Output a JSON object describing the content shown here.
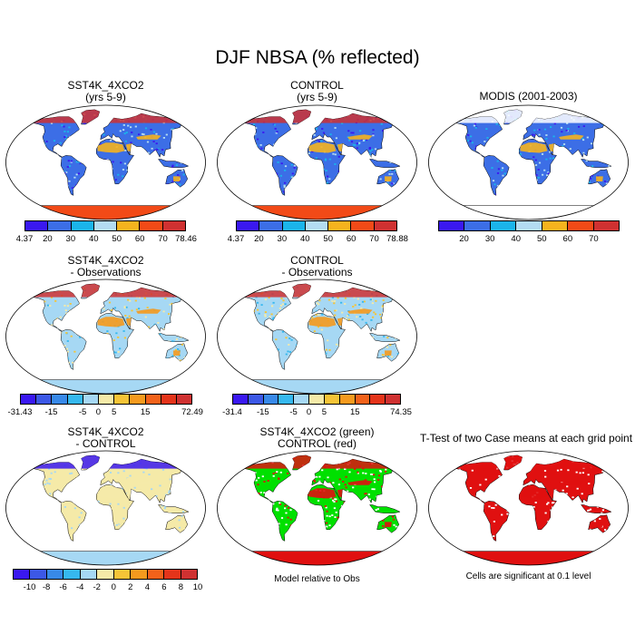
{
  "title": "DJF NBSA (% reflected)",
  "palettes": {
    "absolute": [
      "#3a18f0",
      "#3c6ee6",
      "#1bb4ea",
      "#b3dcf2",
      "#f5b31e",
      "#f24a17",
      "#cf3131"
    ],
    "difference": [
      "#3a18f0",
      "#3c58e6",
      "#3889e8",
      "#36b8ee",
      "#a6d8f4",
      "#f5eaa8",
      "#f5c437",
      "#f59a1e",
      "#f2621a",
      "#e4341a",
      "#cf3131"
    ]
  },
  "map_colors": {
    "ocean": "#ffffff",
    "outline": "#000000",
    "grid": "#e6e6e6"
  },
  "panels": [
    {
      "id": "p1",
      "title_lines": [
        "SST4K_4XCO2",
        "(yrs 5-9)"
      ],
      "scheme": "model_abs",
      "colorbar": {
        "palette": "absolute",
        "labels": [
          "4.37",
          "20",
          "30",
          "40",
          "50",
          "60",
          "70",
          "78.46"
        ]
      }
    },
    {
      "id": "p2",
      "title_lines": [
        "CONTROL",
        "(yrs 5-9)"
      ],
      "scheme": "model_abs",
      "colorbar": {
        "palette": "absolute",
        "labels": [
          "4.37",
          "20",
          "30",
          "40",
          "50",
          "60",
          "70",
          "78.88"
        ]
      }
    },
    {
      "id": "p3",
      "title_lines": [
        "MODIS (2001-2003)"
      ],
      "scheme": "obs_abs",
      "colorbar": {
        "palette": "absolute",
        "labels": [
          "20",
          "30",
          "40",
          "50",
          "60",
          "70"
        ]
      }
    },
    {
      "id": "p4",
      "title_lines": [
        "SST4K_4XCO2",
        "- Observations"
      ],
      "scheme": "model_minus_obs",
      "colorbar": {
        "palette": "difference",
        "labels": [
          "-31.43",
          "-15",
          "-5",
          "0",
          "5",
          "15",
          "72.49"
        ]
      }
    },
    {
      "id": "p5",
      "title_lines": [
        "CONTROL",
        "- Observations"
      ],
      "scheme": "model_minus_obs",
      "colorbar": {
        "palette": "difference",
        "labels": [
          "-31.4",
          "-15",
          "-5",
          "0",
          "5",
          "15",
          "74.35"
        ]
      }
    },
    {
      "id": "p6",
      "title_lines": [
        "SST4K_4XCO2",
        "- CONTROL"
      ],
      "scheme": "case_diff",
      "colorbar": {
        "palette": "difference",
        "labels": [
          "-10",
          "-8",
          "-6",
          "-4",
          "-2",
          "0",
          "2",
          "4",
          "6",
          "8",
          "10"
        ]
      }
    },
    {
      "id": "p7",
      "title_lines": [
        "SST4K_4XCO2 (green)",
        "CONTROL (red)"
      ],
      "scheme": "green_red",
      "note": "Model relative to Obs"
    },
    {
      "id": "p8",
      "title_lines": [
        "T-Test of two Case means at each grid point"
      ],
      "scheme": "ttest",
      "note": "Cells are significant at 0.1 level"
    }
  ],
  "scheme_colors": {
    "model_abs": {
      "land": "#3c6ee6",
      "spots": [
        "#1bb4ea",
        "#3a18f0",
        "#b3dcf2"
      ],
      "desert": "#f5b31e",
      "arctic": "#cf3131",
      "antarctic": "#f24a17"
    },
    "obs_abs": {
      "land": "#3c6ee6",
      "spots": [
        "#1bb4ea",
        "#b3dcf2",
        "#3a18f0"
      ],
      "desert": "#f5b31e",
      "arctic": "#ffffff",
      "antarctic": "#ffffff"
    },
    "model_minus_obs": {
      "land": "#a6d8f4",
      "spots": [
        "#f5eaa8",
        "#36b8ee",
        "#f5c437"
      ],
      "desert": "#f59a1e",
      "arctic": "#cf3131",
      "antarctic": "#a6d8f4"
    },
    "case_diff": {
      "land": "#f5eaa8",
      "spots": [
        "#a6d8f4",
        "#f5eaa8"
      ],
      "desert": "#f5eaa8",
      "arctic": "#3a18f0",
      "antarctic": "#a6d8f4"
    },
    "green_red": {
      "land": "#00e000",
      "spots": [
        "#e01010",
        "#ffffff"
      ],
      "desert": "#e01010",
      "arctic": "#e01010",
      "antarctic": "#e01010"
    },
    "ttest": {
      "land": "#e01010",
      "spots": [
        "#ffffff",
        "#e01010"
      ],
      "desert": "#e01010",
      "arctic": "#e01010",
      "antarctic": "#e01010"
    }
  }
}
